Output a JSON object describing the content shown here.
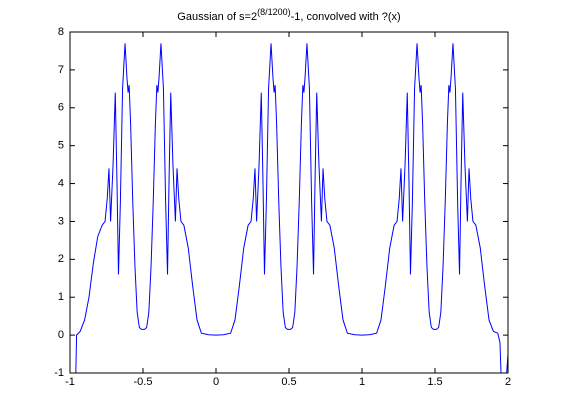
{
  "chart_data": {
    "type": "line",
    "title": {
      "base": "Gaussian of s=2",
      "superscript": "(8/1200)",
      "rest": "-1, convolved with ?(x)"
    },
    "xlim": [
      -1,
      2
    ],
    "ylim": [
      -1,
      8
    ],
    "xticks": [
      -1,
      -0.5,
      0,
      0.5,
      1,
      1.5,
      2
    ],
    "yticks": [
      -1,
      0,
      1,
      2,
      3,
      4,
      5,
      6,
      7,
      8
    ],
    "grid": false,
    "series": [
      {
        "color": "#0000ff",
        "x": [
          -0.96,
          -0.955,
          -0.93,
          -0.9,
          -0.87,
          -0.84,
          -0.81,
          -0.78,
          -0.76,
          -0.745,
          -0.733,
          -0.722,
          -0.705,
          -0.69,
          -0.678,
          -0.668,
          -0.655,
          -0.64,
          -0.623,
          -0.61,
          -0.602,
          -0.595,
          -0.585,
          -0.57,
          -0.555,
          -0.54,
          -0.525,
          -0.51,
          -0.5,
          -0.49,
          -0.475,
          -0.46,
          -0.445,
          -0.43,
          -0.415,
          -0.405,
          -0.398,
          -0.39,
          -0.377,
          -0.36,
          -0.345,
          -0.332,
          -0.322,
          -0.31,
          -0.295,
          -0.278,
          -0.267,
          -0.255,
          -0.24,
          -0.22,
          -0.19,
          -0.16,
          -0.13,
          -0.1,
          -0.05,
          0,
          0.05,
          0.1,
          0.13,
          0.16,
          0.19,
          0.22,
          0.24,
          0.255,
          0.267,
          0.278,
          0.295,
          0.31,
          0.322,
          0.332,
          0.345,
          0.36,
          0.377,
          0.39,
          0.398,
          0.405,
          0.415,
          0.43,
          0.445,
          0.46,
          0.475,
          0.49,
          0.5,
          0.51,
          0.525,
          0.54,
          0.555,
          0.57,
          0.585,
          0.595,
          0.602,
          0.61,
          0.623,
          0.64,
          0.655,
          0.668,
          0.678,
          0.69,
          0.705,
          0.722,
          0.733,
          0.745,
          0.76,
          0.78,
          0.81,
          0.84,
          0.87,
          0.9,
          0.95,
          1,
          1.05,
          1.1,
          1.13,
          1.16,
          1.19,
          1.22,
          1.24,
          1.255,
          1.267,
          1.278,
          1.295,
          1.31,
          1.322,
          1.332,
          1.345,
          1.36,
          1.377,
          1.39,
          1.398,
          1.405,
          1.415,
          1.43,
          1.445,
          1.46,
          1.475,
          1.49,
          1.5,
          1.51,
          1.525,
          1.54,
          1.555,
          1.57,
          1.585,
          1.595,
          1.602,
          1.61,
          1.623,
          1.64,
          1.655,
          1.668,
          1.678,
          1.69,
          1.705,
          1.722,
          1.733,
          1.745,
          1.76,
          1.78,
          1.81,
          1.84,
          1.87,
          1.9,
          1.93,
          1.945,
          1.955,
          1.985,
          2.0
        ],
        "values": [
          -1,
          0,
          0.1,
          0.4,
          1.0,
          1.9,
          2.6,
          2.9,
          3.0,
          3.6,
          4.4,
          3.0,
          4.5,
          6.4,
          4.0,
          1.6,
          3.5,
          6.5,
          7.7,
          6.8,
          6.4,
          6.6,
          5.6,
          3.5,
          1.8,
          0.6,
          0.2,
          0.15,
          0.15,
          0.15,
          0.2,
          0.6,
          1.8,
          3.5,
          5.6,
          6.6,
          6.4,
          6.8,
          7.7,
          6.5,
          3.5,
          1.6,
          4.0,
          6.4,
          4.5,
          3.0,
          4.4,
          3.6,
          3.0,
          2.9,
          2.3,
          1.3,
          0.4,
          0.05,
          0.01,
          0,
          0.01,
          0.05,
          0.4,
          1.3,
          2.3,
          2.9,
          3.0,
          3.6,
          4.4,
          3.0,
          4.5,
          6.4,
          4.0,
          1.6,
          3.5,
          6.5,
          7.7,
          6.8,
          6.4,
          6.6,
          5.6,
          3.5,
          1.8,
          0.6,
          0.2,
          0.15,
          0.15,
          0.15,
          0.2,
          0.6,
          1.8,
          3.5,
          5.6,
          6.6,
          6.4,
          6.8,
          7.7,
          6.5,
          3.5,
          1.6,
          4.0,
          6.4,
          4.5,
          3.0,
          4.4,
          3.6,
          3.0,
          2.9,
          2.3,
          1.3,
          0.4,
          0.05,
          0.01,
          0,
          0.01,
          0.05,
          0.4,
          1.3,
          2.3,
          2.9,
          3.0,
          3.6,
          4.4,
          3.0,
          4.5,
          6.4,
          4.0,
          1.6,
          3.5,
          6.5,
          7.7,
          6.8,
          6.4,
          6.6,
          5.6,
          3.5,
          1.8,
          0.6,
          0.2,
          0.15,
          0.15,
          0.15,
          0.2,
          0.6,
          1.8,
          3.5,
          5.6,
          6.6,
          6.4,
          6.8,
          7.7,
          6.5,
          3.5,
          1.6,
          4.0,
          6.4,
          4.5,
          3.0,
          4.4,
          3.6,
          3.0,
          2.9,
          2.3,
          1.3,
          0.4,
          0.1,
          0.05,
          -0.2,
          -1.3,
          -1.3,
          -0.5
        ]
      }
    ]
  }
}
